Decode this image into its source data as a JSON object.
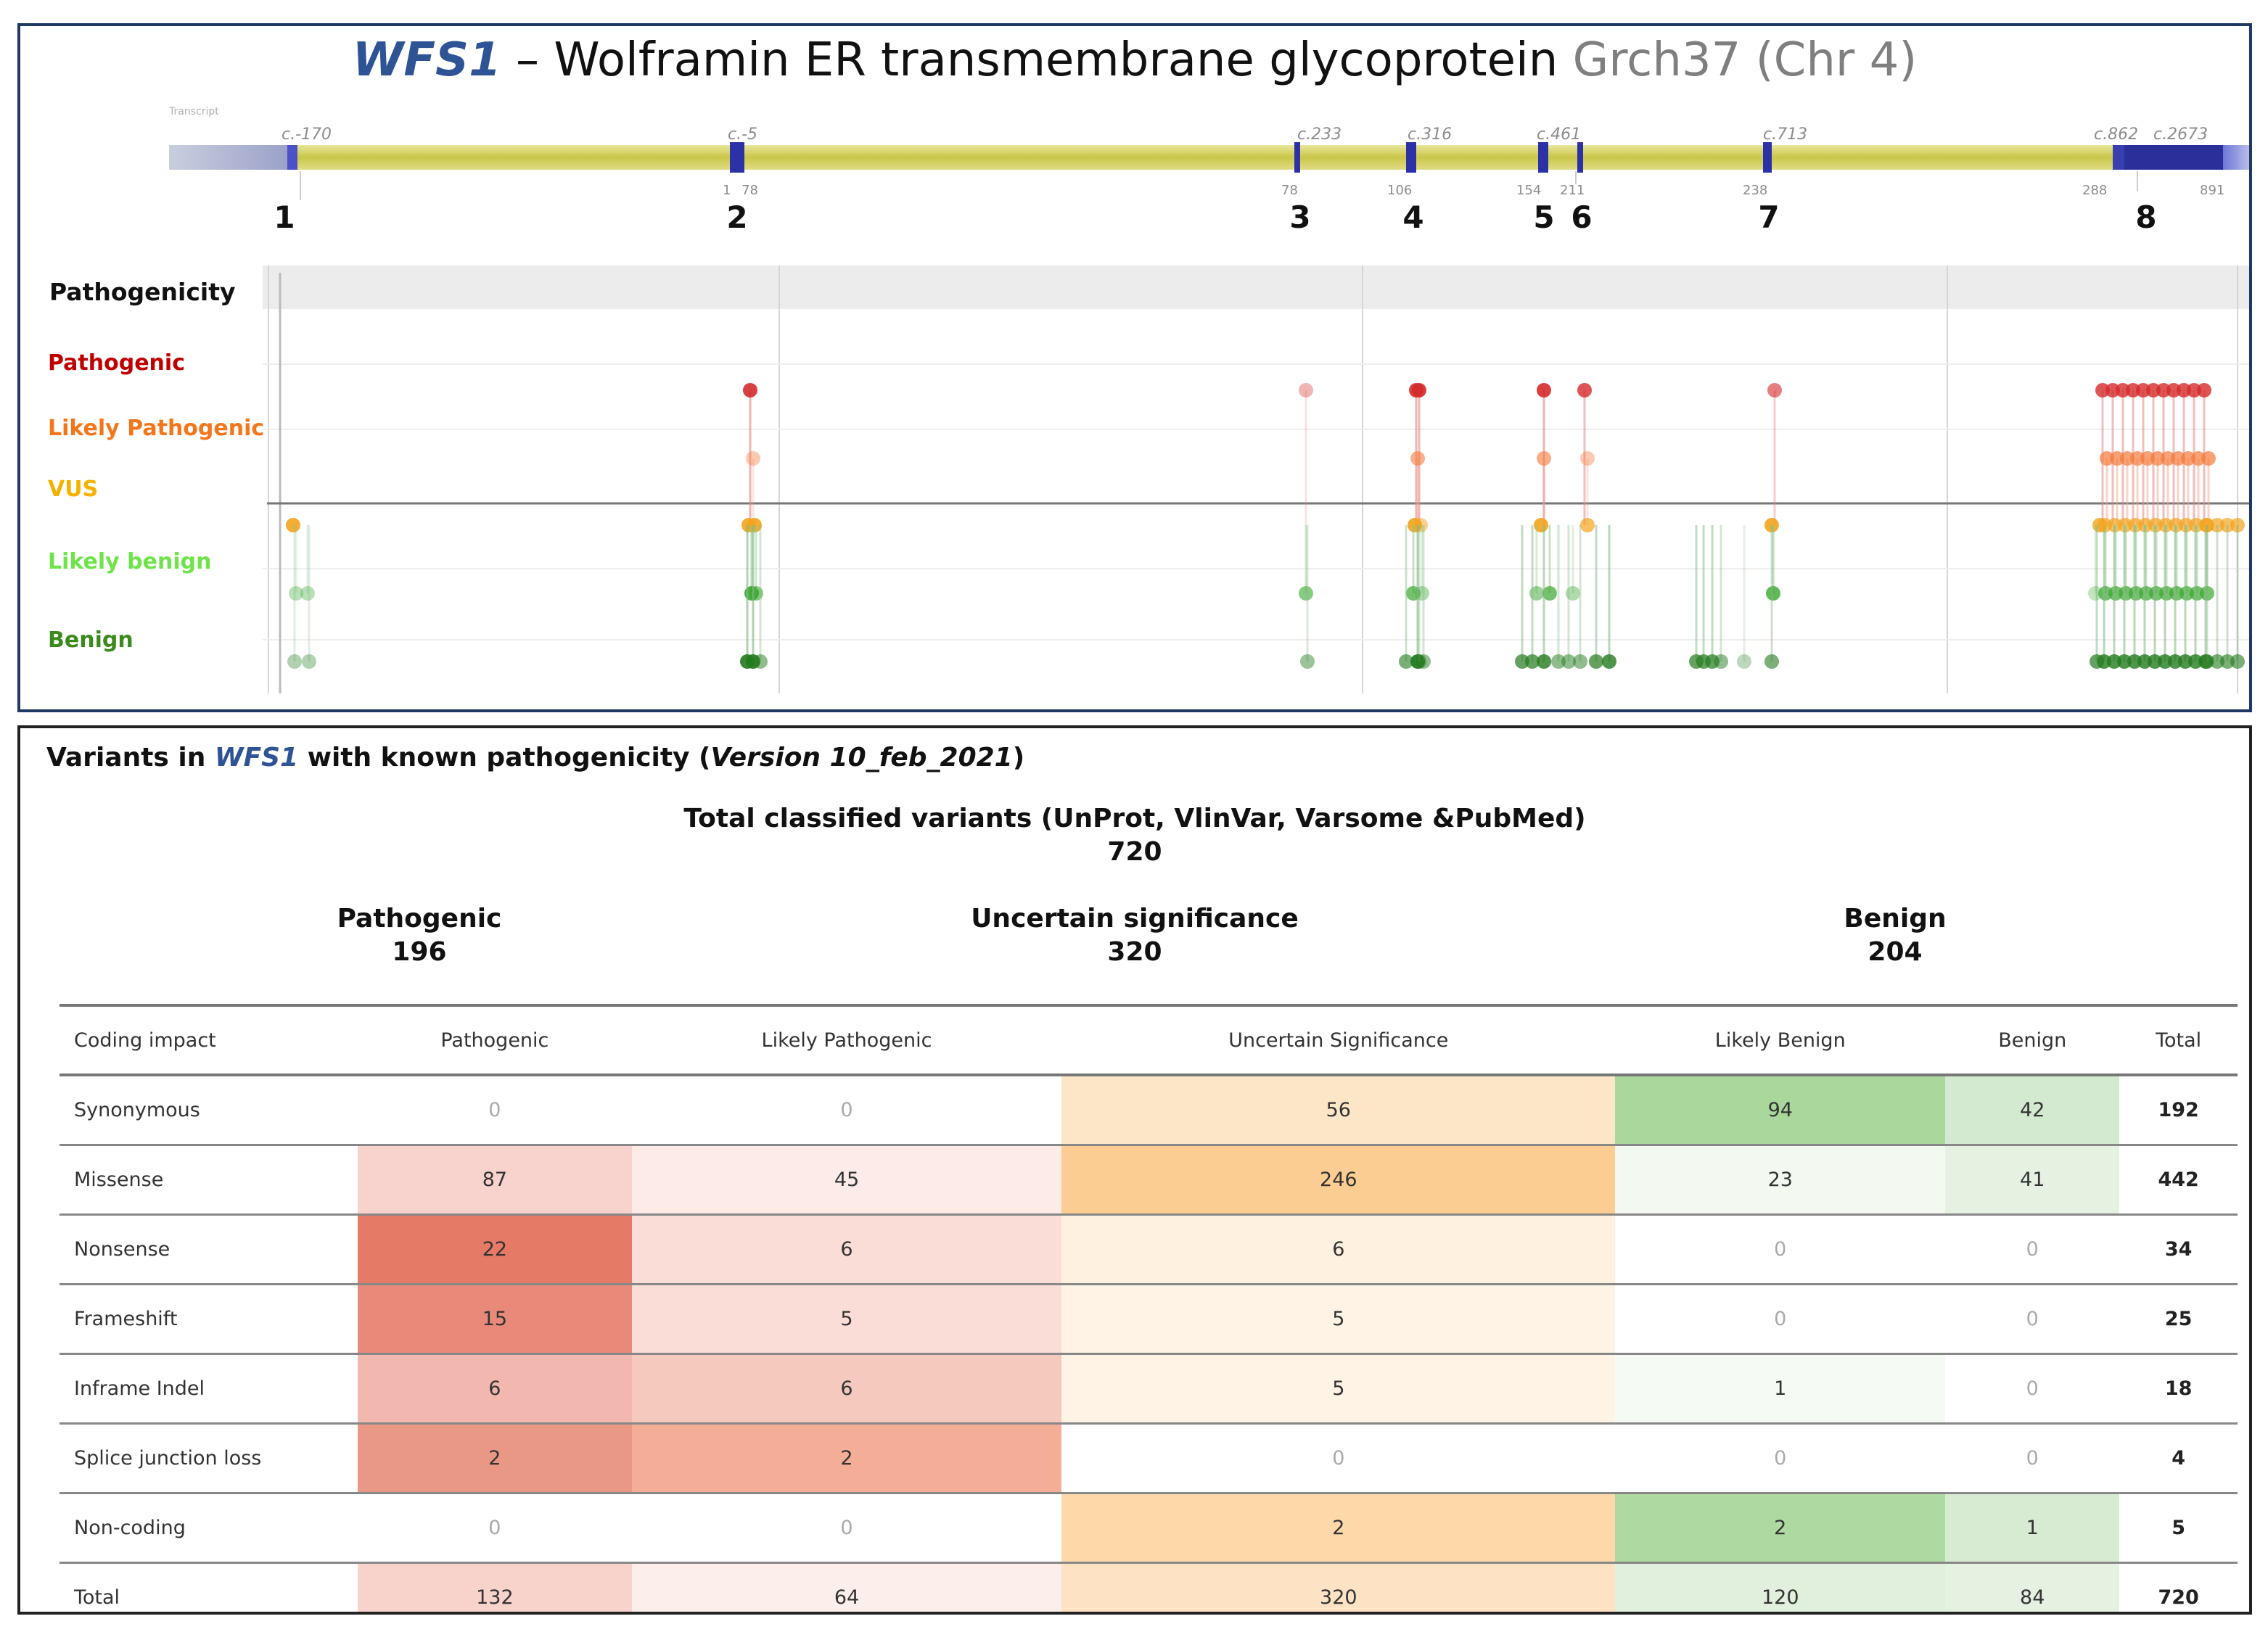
{
  "diagram": {
    "title": {
      "gene": "WFS1",
      "separator": " – ",
      "protein": "Wolframin ER transmembrane glycoprotein",
      "build": " Grch37 (Chr 4)"
    },
    "track_label": "Transcript",
    "exon_numbers": [
      "1",
      "2",
      "3",
      "4",
      "5",
      "6",
      "7",
      "8"
    ],
    "cdna_labels": [
      "c.-170",
      "c.-5",
      "c.233",
      "c.316",
      "c.461",
      "c.713",
      "c.862",
      "c.2673"
    ],
    "aa_labels": [
      "1",
      "78",
      "78",
      "106",
      "154",
      "211",
      "238",
      "288",
      "891"
    ],
    "pathogenicity_header": "Pathogenicity",
    "rows": [
      {
        "label": "Pathogenic",
        "color": "#c00000"
      },
      {
        "label": "Likely Pathogenic",
        "color": "#f4761b"
      },
      {
        "label": "VUS",
        "color": "#f3b200"
      },
      {
        "label": "Likely benign",
        "color": "#6ee34a"
      },
      {
        "label": "Benign",
        "color": "#3a8b1c"
      }
    ]
  },
  "variants": {
    "heading": {
      "prefix": "Variants in ",
      "gene": "WFS1",
      "middle": " with known pathogenicity (",
      "version": "Version 10_feb_2021",
      "suffix": ")"
    },
    "total_label": "Total classified variants (UnProt, VlinVar, Varsome &PubMed)",
    "total_value": "720",
    "groups": [
      {
        "label": "Pathogenic",
        "value": "196"
      },
      {
        "label": "Uncertain significance",
        "value": "320"
      },
      {
        "label": "Benign",
        "value": "204"
      }
    ],
    "table": {
      "headers": [
        "Coding impact",
        "Pathogenic",
        "Likely Pathogenic",
        "Uncertain Significance",
        "Likely Benign",
        "Benign",
        "Total"
      ],
      "rows": [
        {
          "label": "Synonymous",
          "cells": [
            "0",
            "0",
            "56",
            "94",
            "42",
            "192"
          ]
        },
        {
          "label": "Missense",
          "cells": [
            "87",
            "45",
            "246",
            "23",
            "41",
            "442"
          ]
        },
        {
          "label": "Nonsense",
          "cells": [
            "22",
            "6",
            "6",
            "0",
            "0",
            "34"
          ]
        },
        {
          "label": "Frameshift",
          "cells": [
            "15",
            "5",
            "5",
            "0",
            "0",
            "25"
          ]
        },
        {
          "label": "Inframe Indel",
          "cells": [
            "6",
            "6",
            "5",
            "1",
            "0",
            "18"
          ]
        },
        {
          "label": "Splice junction loss",
          "cells": [
            "2",
            "2",
            "0",
            "0",
            "0",
            "4"
          ]
        },
        {
          "label": "Non-coding",
          "cells": [
            "0",
            "0",
            "2",
            "2",
            "1",
            "5"
          ]
        },
        {
          "label": "Total",
          "cells": [
            "132",
            "64",
            "320",
            "120",
            "84",
            "720"
          ]
        }
      ],
      "cell_colors": [
        [
          "#ffffff",
          "#ffffff",
          "#fde6c8",
          "#a9d79c",
          "#d4ead0",
          "#ffffff"
        ],
        [
          "#f8d2cc",
          "#fcebe7",
          "#fccd92",
          "#f3f9f1",
          "#e5f2e2",
          "#ffffff"
        ],
        [
          "#e57a66",
          "#fbddd7",
          "#fef1e0",
          "#ffffff",
          "#ffffff",
          "#ffffff"
        ],
        [
          "#e8897a",
          "#fbddd7",
          "#fef3e4",
          "#ffffff",
          "#ffffff",
          "#ffffff"
        ],
        [
          "#f2b8b0",
          "#f6c9bf",
          "#fef3e4",
          "#f5faf4",
          "#ffffff",
          "#ffffff"
        ],
        [
          "#ea9886",
          "#f4ae98",
          "#ffffff",
          "#ffffff",
          "#ffffff",
          "#ffffff"
        ],
        [
          "#ffffff",
          "#ffffff",
          "#fdd9a9",
          "#aedaa1",
          "#d6ebd2",
          "#ffffff"
        ],
        [
          "#f7d3cc",
          "#fceeea",
          "#fde3c4",
          "#e1f0dc",
          "#e5f2e2",
          "#ffffff"
        ]
      ]
    }
  }
}
